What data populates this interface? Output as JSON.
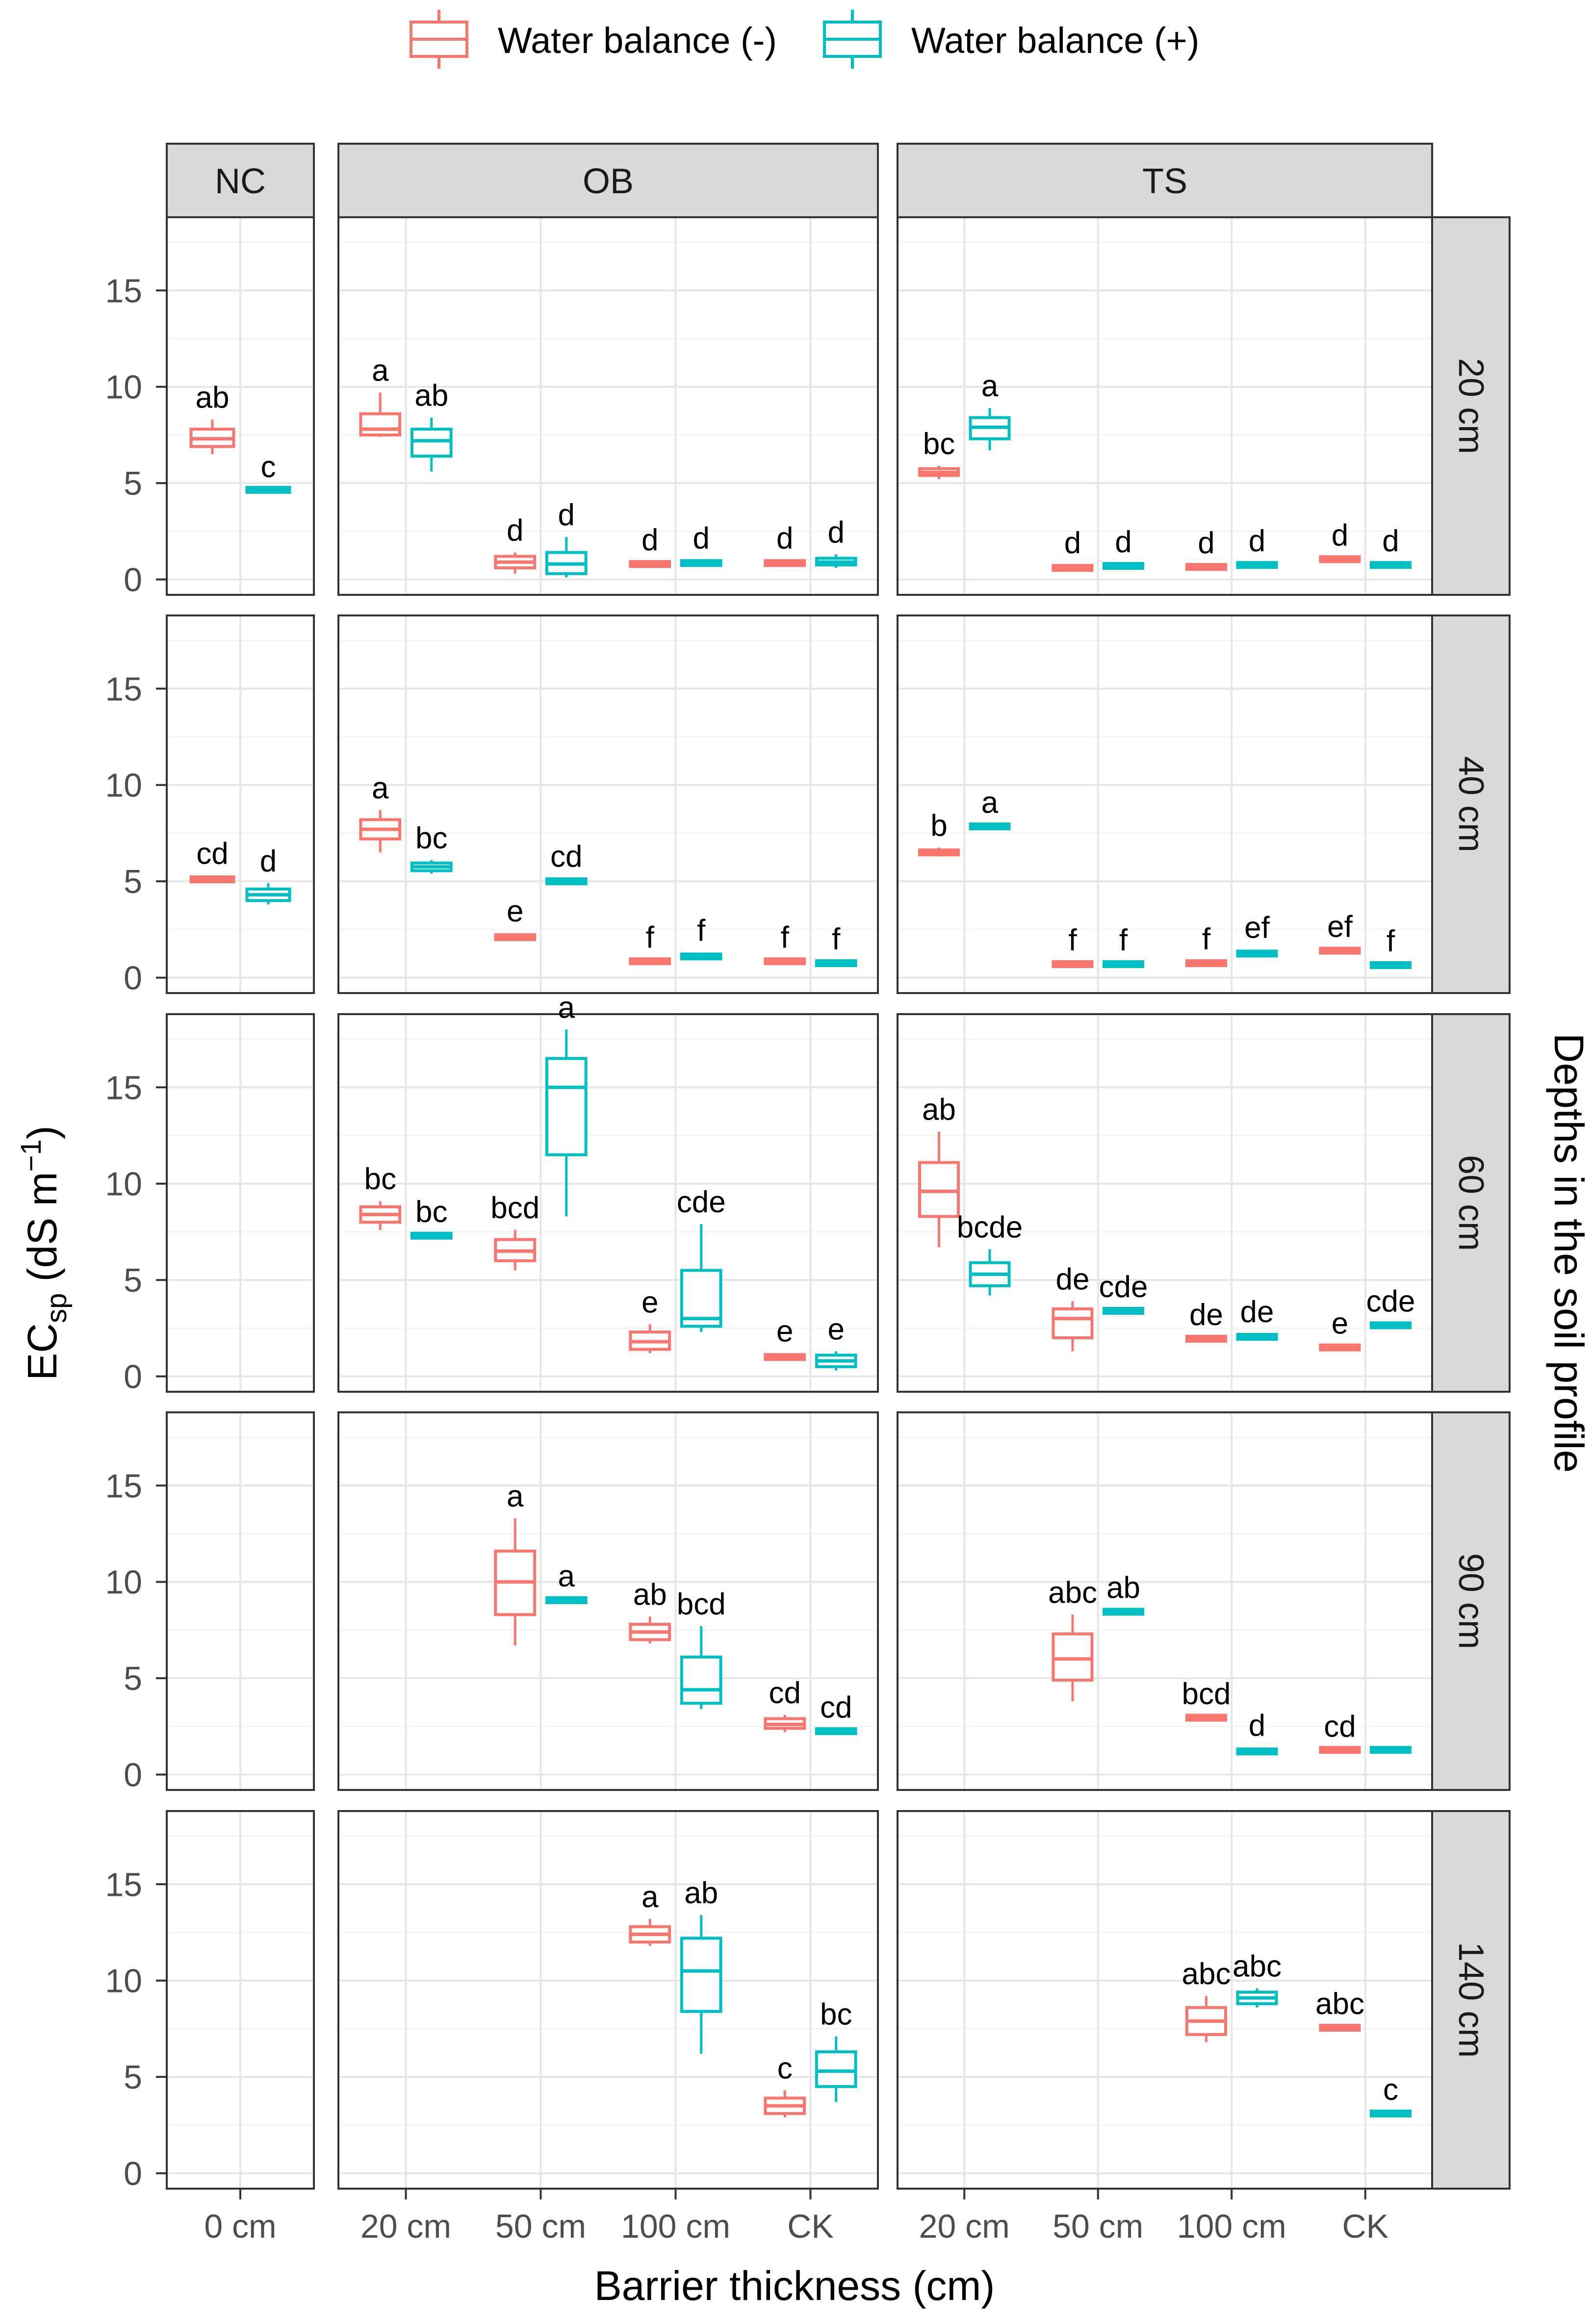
{
  "legend": {
    "items": [
      {
        "label": "Water balance (-)",
        "color": "#F8766D"
      },
      {
        "label": "Water balance (+)",
        "color": "#00BFC4"
      }
    ]
  },
  "axes": {
    "ylabel_main": "EC",
    "ylabel_sub": "sp",
    "ylabel_unit_open": " (dS m",
    "ylabel_sup": "−1",
    "ylabel_close": ")",
    "xlabel": "Barrier thickness (cm)",
    "right_label": "Depths in the soil profile"
  },
  "chart_data": {
    "type": "boxplot",
    "ylim": [
      -0.8,
      18.8
    ],
    "yticks": [
      0,
      5,
      10,
      15
    ],
    "ytick_labels": [
      "0",
      "5",
      "10",
      "15"
    ],
    "groups": [
      "Water balance (-)",
      "Water balance (+)"
    ],
    "columns": [
      {
        "name": "NC",
        "categories": [
          "0 cm"
        ]
      },
      {
        "name": "OB",
        "categories": [
          "20 cm",
          "50 cm",
          "100 cm",
          "CK"
        ]
      },
      {
        "name": "TS",
        "categories": [
          "20 cm",
          "50 cm",
          "100 cm",
          "CK"
        ]
      }
    ],
    "rows": [
      "20 cm",
      "40 cm",
      "60 cm",
      "90 cm",
      "140 cm"
    ],
    "boxes": [
      {
        "row": 0,
        "col": 0,
        "cat": 0,
        "g": 0,
        "min": 6.5,
        "q1": 6.9,
        "med": 7.3,
        "q3": 7.8,
        "max": 8.3,
        "label": "ab"
      },
      {
        "row": 0,
        "col": 0,
        "cat": 0,
        "g": 1,
        "min": 4.6,
        "q1": 4.6,
        "med": 4.65,
        "q3": 4.7,
        "max": 4.7,
        "label": "c"
      },
      {
        "row": 0,
        "col": 1,
        "cat": 0,
        "g": 0,
        "min": 7.4,
        "q1": 7.5,
        "med": 7.8,
        "q3": 8.6,
        "max": 9.7,
        "label": "a"
      },
      {
        "row": 0,
        "col": 1,
        "cat": 0,
        "g": 1,
        "min": 5.6,
        "q1": 6.4,
        "med": 7.2,
        "q3": 7.8,
        "max": 8.4,
        "label": "ab"
      },
      {
        "row": 0,
        "col": 1,
        "cat": 1,
        "g": 0,
        "min": 0.3,
        "q1": 0.6,
        "med": 0.9,
        "q3": 1.2,
        "max": 1.4,
        "label": "d"
      },
      {
        "row": 0,
        "col": 1,
        "cat": 1,
        "g": 1,
        "min": 0.1,
        "q1": 0.3,
        "med": 0.8,
        "q3": 1.4,
        "max": 2.2,
        "label": "d"
      },
      {
        "row": 0,
        "col": 1,
        "cat": 2,
        "g": 0,
        "min": 0.7,
        "q1": 0.7,
        "med": 0.8,
        "q3": 0.9,
        "max": 0.9,
        "label": "d"
      },
      {
        "row": 0,
        "col": 1,
        "cat": 2,
        "g": 1,
        "min": 0.7,
        "q1": 0.75,
        "med": 0.85,
        "q3": 0.95,
        "max": 1.0,
        "label": "d"
      },
      {
        "row": 0,
        "col": 1,
        "cat": 3,
        "g": 0,
        "min": 0.7,
        "q1": 0.75,
        "med": 0.85,
        "q3": 0.95,
        "max": 1.0,
        "label": "d"
      },
      {
        "row": 0,
        "col": 1,
        "cat": 3,
        "g": 1,
        "min": 0.6,
        "q1": 0.75,
        "med": 0.9,
        "q3": 1.1,
        "max": 1.3,
        "label": "d"
      },
      {
        "row": 0,
        "col": 2,
        "cat": 0,
        "g": 0,
        "min": 5.2,
        "q1": 5.4,
        "med": 5.55,
        "q3": 5.75,
        "max": 5.9,
        "label": "bc"
      },
      {
        "row": 0,
        "col": 2,
        "cat": 0,
        "g": 1,
        "min": 6.7,
        "q1": 7.3,
        "med": 7.9,
        "q3": 8.4,
        "max": 8.9,
        "label": "a"
      },
      {
        "row": 0,
        "col": 2,
        "cat": 1,
        "g": 0,
        "min": 0.5,
        "q1": 0.55,
        "med": 0.6,
        "q3": 0.7,
        "max": 0.75,
        "label": "d"
      },
      {
        "row": 0,
        "col": 2,
        "cat": 1,
        "g": 1,
        "min": 0.6,
        "q1": 0.65,
        "med": 0.7,
        "q3": 0.75,
        "max": 0.8,
        "label": "d"
      },
      {
        "row": 0,
        "col": 2,
        "cat": 2,
        "g": 0,
        "min": 0.55,
        "q1": 0.6,
        "med": 0.65,
        "q3": 0.7,
        "max": 0.75,
        "label": "d"
      },
      {
        "row": 0,
        "col": 2,
        "cat": 2,
        "g": 1,
        "min": 0.6,
        "q1": 0.65,
        "med": 0.75,
        "q3": 0.8,
        "max": 0.85,
        "label": "d"
      },
      {
        "row": 0,
        "col": 2,
        "cat": 3,
        "g": 0,
        "min": 0.95,
        "q1": 1.0,
        "med": 1.05,
        "q3": 1.1,
        "max": 1.15,
        "label": "d"
      },
      {
        "row": 0,
        "col": 2,
        "cat": 3,
        "g": 1,
        "min": 0.65,
        "q1": 0.7,
        "med": 0.75,
        "q3": 0.8,
        "max": 0.85,
        "label": "d"
      },
      {
        "row": 1,
        "col": 0,
        "cat": 0,
        "g": 0,
        "min": 4.9,
        "q1": 5.0,
        "med": 5.1,
        "q3": 5.2,
        "max": 5.3,
        "label": "cd"
      },
      {
        "row": 1,
        "col": 0,
        "cat": 0,
        "g": 1,
        "min": 3.8,
        "q1": 4.0,
        "med": 4.3,
        "q3": 4.6,
        "max": 4.9,
        "label": "d"
      },
      {
        "row": 1,
        "col": 1,
        "cat": 0,
        "g": 0,
        "min": 6.5,
        "q1": 7.2,
        "med": 7.7,
        "q3": 8.2,
        "max": 8.7,
        "label": "a"
      },
      {
        "row": 1,
        "col": 1,
        "cat": 0,
        "g": 1,
        "min": 5.4,
        "q1": 5.55,
        "med": 5.75,
        "q3": 5.95,
        "max": 6.1,
        "label": "bc"
      },
      {
        "row": 1,
        "col": 1,
        "cat": 1,
        "g": 0,
        "min": 1.9,
        "q1": 2.0,
        "med": 2.1,
        "q3": 2.2,
        "max": 2.3,
        "label": "e"
      },
      {
        "row": 1,
        "col": 1,
        "cat": 1,
        "g": 1,
        "min": 4.85,
        "q1": 4.9,
        "med": 5.0,
        "q3": 5.1,
        "max": 5.15,
        "label": "cd"
      },
      {
        "row": 1,
        "col": 1,
        "cat": 2,
        "g": 0,
        "min": 0.75,
        "q1": 0.8,
        "med": 0.85,
        "q3": 0.9,
        "max": 0.95,
        "label": "f"
      },
      {
        "row": 1,
        "col": 1,
        "cat": 2,
        "g": 1,
        "min": 0.9,
        "q1": 1.0,
        "med": 1.1,
        "q3": 1.2,
        "max": 1.3,
        "label": "f"
      },
      {
        "row": 1,
        "col": 1,
        "cat": 3,
        "g": 0,
        "min": 0.75,
        "q1": 0.8,
        "med": 0.85,
        "q3": 0.9,
        "max": 0.95,
        "label": "f"
      },
      {
        "row": 1,
        "col": 1,
        "cat": 3,
        "g": 1,
        "min": 0.65,
        "q1": 0.7,
        "med": 0.75,
        "q3": 0.8,
        "max": 0.85,
        "label": "f"
      },
      {
        "row": 1,
        "col": 2,
        "cat": 0,
        "g": 0,
        "min": 6.3,
        "q1": 6.4,
        "med": 6.5,
        "q3": 6.65,
        "max": 6.75,
        "label": "b"
      },
      {
        "row": 1,
        "col": 2,
        "cat": 0,
        "g": 1,
        "min": 7.75,
        "q1": 7.8,
        "med": 7.85,
        "q3": 7.9,
        "max": 7.95,
        "label": "a"
      },
      {
        "row": 1,
        "col": 2,
        "cat": 1,
        "g": 0,
        "min": 0.6,
        "q1": 0.65,
        "med": 0.7,
        "q3": 0.75,
        "max": 0.8,
        "label": "f"
      },
      {
        "row": 1,
        "col": 2,
        "cat": 1,
        "g": 1,
        "min": 0.6,
        "q1": 0.65,
        "med": 0.7,
        "q3": 0.75,
        "max": 0.8,
        "label": "f"
      },
      {
        "row": 1,
        "col": 2,
        "cat": 2,
        "g": 0,
        "min": 0.65,
        "q1": 0.7,
        "med": 0.75,
        "q3": 0.8,
        "max": 0.85,
        "label": "f"
      },
      {
        "row": 1,
        "col": 2,
        "cat": 2,
        "g": 1,
        "min": 1.05,
        "q1": 1.15,
        "med": 1.25,
        "q3": 1.35,
        "max": 1.45,
        "label": "ef"
      },
      {
        "row": 1,
        "col": 2,
        "cat": 3,
        "g": 0,
        "min": 1.3,
        "q1": 1.35,
        "med": 1.4,
        "q3": 1.45,
        "max": 1.5,
        "label": "ef"
      },
      {
        "row": 1,
        "col": 2,
        "cat": 3,
        "g": 1,
        "min": 0.55,
        "q1": 0.6,
        "med": 0.65,
        "q3": 0.7,
        "max": 0.75,
        "label": "f"
      },
      {
        "row": 2,
        "col": 1,
        "cat": 0,
        "g": 0,
        "min": 7.6,
        "q1": 8.0,
        "med": 8.4,
        "q3": 8.8,
        "max": 9.1,
        "label": "bc"
      },
      {
        "row": 2,
        "col": 1,
        "cat": 0,
        "g": 1,
        "min": 7.2,
        "q1": 7.25,
        "med": 7.3,
        "q3": 7.35,
        "max": 7.4,
        "label": "bc"
      },
      {
        "row": 2,
        "col": 1,
        "cat": 1,
        "g": 0,
        "min": 5.5,
        "q1": 6.0,
        "med": 6.5,
        "q3": 7.1,
        "max": 7.6,
        "label": "bcd"
      },
      {
        "row": 2,
        "col": 1,
        "cat": 1,
        "g": 1,
        "min": 8.3,
        "q1": 11.5,
        "med": 15.0,
        "q3": 16.5,
        "max": 18.0,
        "label": "a"
      },
      {
        "row": 2,
        "col": 1,
        "cat": 2,
        "g": 0,
        "min": 1.2,
        "q1": 1.4,
        "med": 1.8,
        "q3": 2.3,
        "max": 2.7,
        "label": "e"
      },
      {
        "row": 2,
        "col": 1,
        "cat": 2,
        "g": 1,
        "min": 2.3,
        "q1": 2.6,
        "med": 3.0,
        "q3": 5.5,
        "max": 7.9,
        "label": "cde"
      },
      {
        "row": 2,
        "col": 1,
        "cat": 3,
        "g": 0,
        "min": 0.85,
        "q1": 0.9,
        "med": 1.0,
        "q3": 1.1,
        "max": 1.2,
        "label": "e"
      },
      {
        "row": 2,
        "col": 1,
        "cat": 3,
        "g": 1,
        "min": 0.3,
        "q1": 0.5,
        "med": 0.8,
        "q3": 1.1,
        "max": 1.3,
        "label": "e"
      },
      {
        "row": 2,
        "col": 2,
        "cat": 0,
        "g": 0,
        "min": 6.7,
        "q1": 8.3,
        "med": 9.6,
        "q3": 11.1,
        "max": 12.7,
        "label": "ab"
      },
      {
        "row": 2,
        "col": 2,
        "cat": 0,
        "g": 1,
        "min": 4.2,
        "q1": 4.7,
        "med": 5.3,
        "q3": 5.9,
        "max": 6.6,
        "label": "bcde"
      },
      {
        "row": 2,
        "col": 2,
        "cat": 1,
        "g": 0,
        "min": 1.3,
        "q1": 2.0,
        "med": 3.0,
        "q3": 3.5,
        "max": 3.9,
        "label": "de"
      },
      {
        "row": 2,
        "col": 2,
        "cat": 1,
        "g": 1,
        "min": 3.3,
        "q1": 3.35,
        "med": 3.4,
        "q3": 3.45,
        "max": 3.5,
        "label": "cde"
      },
      {
        "row": 2,
        "col": 2,
        "cat": 2,
        "g": 0,
        "min": 1.85,
        "q1": 1.9,
        "med": 1.95,
        "q3": 2.0,
        "max": 2.05,
        "label": "de"
      },
      {
        "row": 2,
        "col": 2,
        "cat": 2,
        "g": 1,
        "min": 1.9,
        "q1": 1.95,
        "med": 2.05,
        "q3": 2.15,
        "max": 2.2,
        "label": "de"
      },
      {
        "row": 2,
        "col": 2,
        "cat": 3,
        "g": 0,
        "min": 1.4,
        "q1": 1.45,
        "med": 1.5,
        "q3": 1.55,
        "max": 1.6,
        "label": "e"
      },
      {
        "row": 2,
        "col": 2,
        "cat": 3,
        "g": 1,
        "min": 2.55,
        "q1": 2.6,
        "med": 2.65,
        "q3": 2.7,
        "max": 2.75,
        "label": "cde"
      },
      {
        "row": 3,
        "col": 1,
        "cat": 1,
        "g": 0,
        "min": 6.7,
        "q1": 8.3,
        "med": 10.0,
        "q3": 11.6,
        "max": 13.3,
        "label": "a"
      },
      {
        "row": 3,
        "col": 1,
        "cat": 1,
        "g": 1,
        "min": 8.95,
        "q1": 9.0,
        "med": 9.05,
        "q3": 9.1,
        "max": 9.15,
        "label": "a"
      },
      {
        "row": 3,
        "col": 1,
        "cat": 2,
        "g": 0,
        "min": 6.8,
        "q1": 7.0,
        "med": 7.4,
        "q3": 7.8,
        "max": 8.2,
        "label": "ab"
      },
      {
        "row": 3,
        "col": 1,
        "cat": 2,
        "g": 1,
        "min": 3.4,
        "q1": 3.7,
        "med": 4.4,
        "q3": 6.1,
        "max": 7.7,
        "label": "bcd"
      },
      {
        "row": 3,
        "col": 1,
        "cat": 3,
        "g": 0,
        "min": 2.2,
        "q1": 2.4,
        "med": 2.6,
        "q3": 2.9,
        "max": 3.1,
        "label": "cd"
      },
      {
        "row": 3,
        "col": 1,
        "cat": 3,
        "g": 1,
        "min": 2.15,
        "q1": 2.2,
        "med": 2.25,
        "q3": 2.3,
        "max": 2.35,
        "label": "cd"
      },
      {
        "row": 3,
        "col": 2,
        "cat": 1,
        "g": 0,
        "min": 3.8,
        "q1": 4.9,
        "med": 6.0,
        "q3": 7.3,
        "max": 8.3,
        "label": "abc"
      },
      {
        "row": 3,
        "col": 2,
        "cat": 1,
        "g": 1,
        "min": 8.35,
        "q1": 8.4,
        "med": 8.45,
        "q3": 8.5,
        "max": 8.55,
        "label": "ab"
      },
      {
        "row": 3,
        "col": 2,
        "cat": 2,
        "g": 0,
        "min": 2.85,
        "q1": 2.9,
        "med": 2.95,
        "q3": 3.0,
        "max": 3.05,
        "label": "bcd"
      },
      {
        "row": 3,
        "col": 2,
        "cat": 2,
        "g": 1,
        "min": 1.0,
        "q1": 1.1,
        "med": 1.2,
        "q3": 1.3,
        "max": 1.4,
        "label": "d"
      },
      {
        "row": 3,
        "col": 2,
        "cat": 3,
        "g": 0,
        "min": 1.2,
        "q1": 1.25,
        "med": 1.28,
        "q3": 1.32,
        "max": 1.35,
        "label": "cd"
      },
      {
        "row": 3,
        "col": 2,
        "cat": 3,
        "g": 1,
        "min": 1.2,
        "q1": 1.25,
        "med": 1.28,
        "q3": 1.32,
        "max": 1.35,
        "label": ""
      },
      {
        "row": 4,
        "col": 1,
        "cat": 2,
        "g": 0,
        "min": 11.8,
        "q1": 12.0,
        "med": 12.4,
        "q3": 12.8,
        "max": 13.2,
        "label": "a"
      },
      {
        "row": 4,
        "col": 1,
        "cat": 2,
        "g": 1,
        "min": 6.2,
        "q1": 8.4,
        "med": 10.5,
        "q3": 12.2,
        "max": 13.4,
        "label": "ab"
      },
      {
        "row": 4,
        "col": 1,
        "cat": 3,
        "g": 0,
        "min": 2.9,
        "q1": 3.1,
        "med": 3.5,
        "q3": 3.9,
        "max": 4.3,
        "label": "c"
      },
      {
        "row": 4,
        "col": 1,
        "cat": 3,
        "g": 1,
        "min": 3.7,
        "q1": 4.5,
        "med": 5.3,
        "q3": 6.3,
        "max": 7.1,
        "label": "bc"
      },
      {
        "row": 4,
        "col": 2,
        "cat": 2,
        "g": 0,
        "min": 6.8,
        "q1": 7.2,
        "med": 7.9,
        "q3": 8.6,
        "max": 9.2,
        "label": "abc"
      },
      {
        "row": 4,
        "col": 2,
        "cat": 2,
        "g": 1,
        "min": 8.6,
        "q1": 8.8,
        "med": 9.1,
        "q3": 9.4,
        "max": 9.6,
        "label": "abc"
      },
      {
        "row": 4,
        "col": 2,
        "cat": 3,
        "g": 0,
        "min": 7.45,
        "q1": 7.5,
        "med": 7.55,
        "q3": 7.6,
        "max": 7.65,
        "label": "abc"
      },
      {
        "row": 4,
        "col": 2,
        "cat": 3,
        "g": 1,
        "min": 3.0,
        "q1": 3.05,
        "med": 3.1,
        "q3": 3.15,
        "max": 3.2,
        "label": "c"
      }
    ]
  }
}
